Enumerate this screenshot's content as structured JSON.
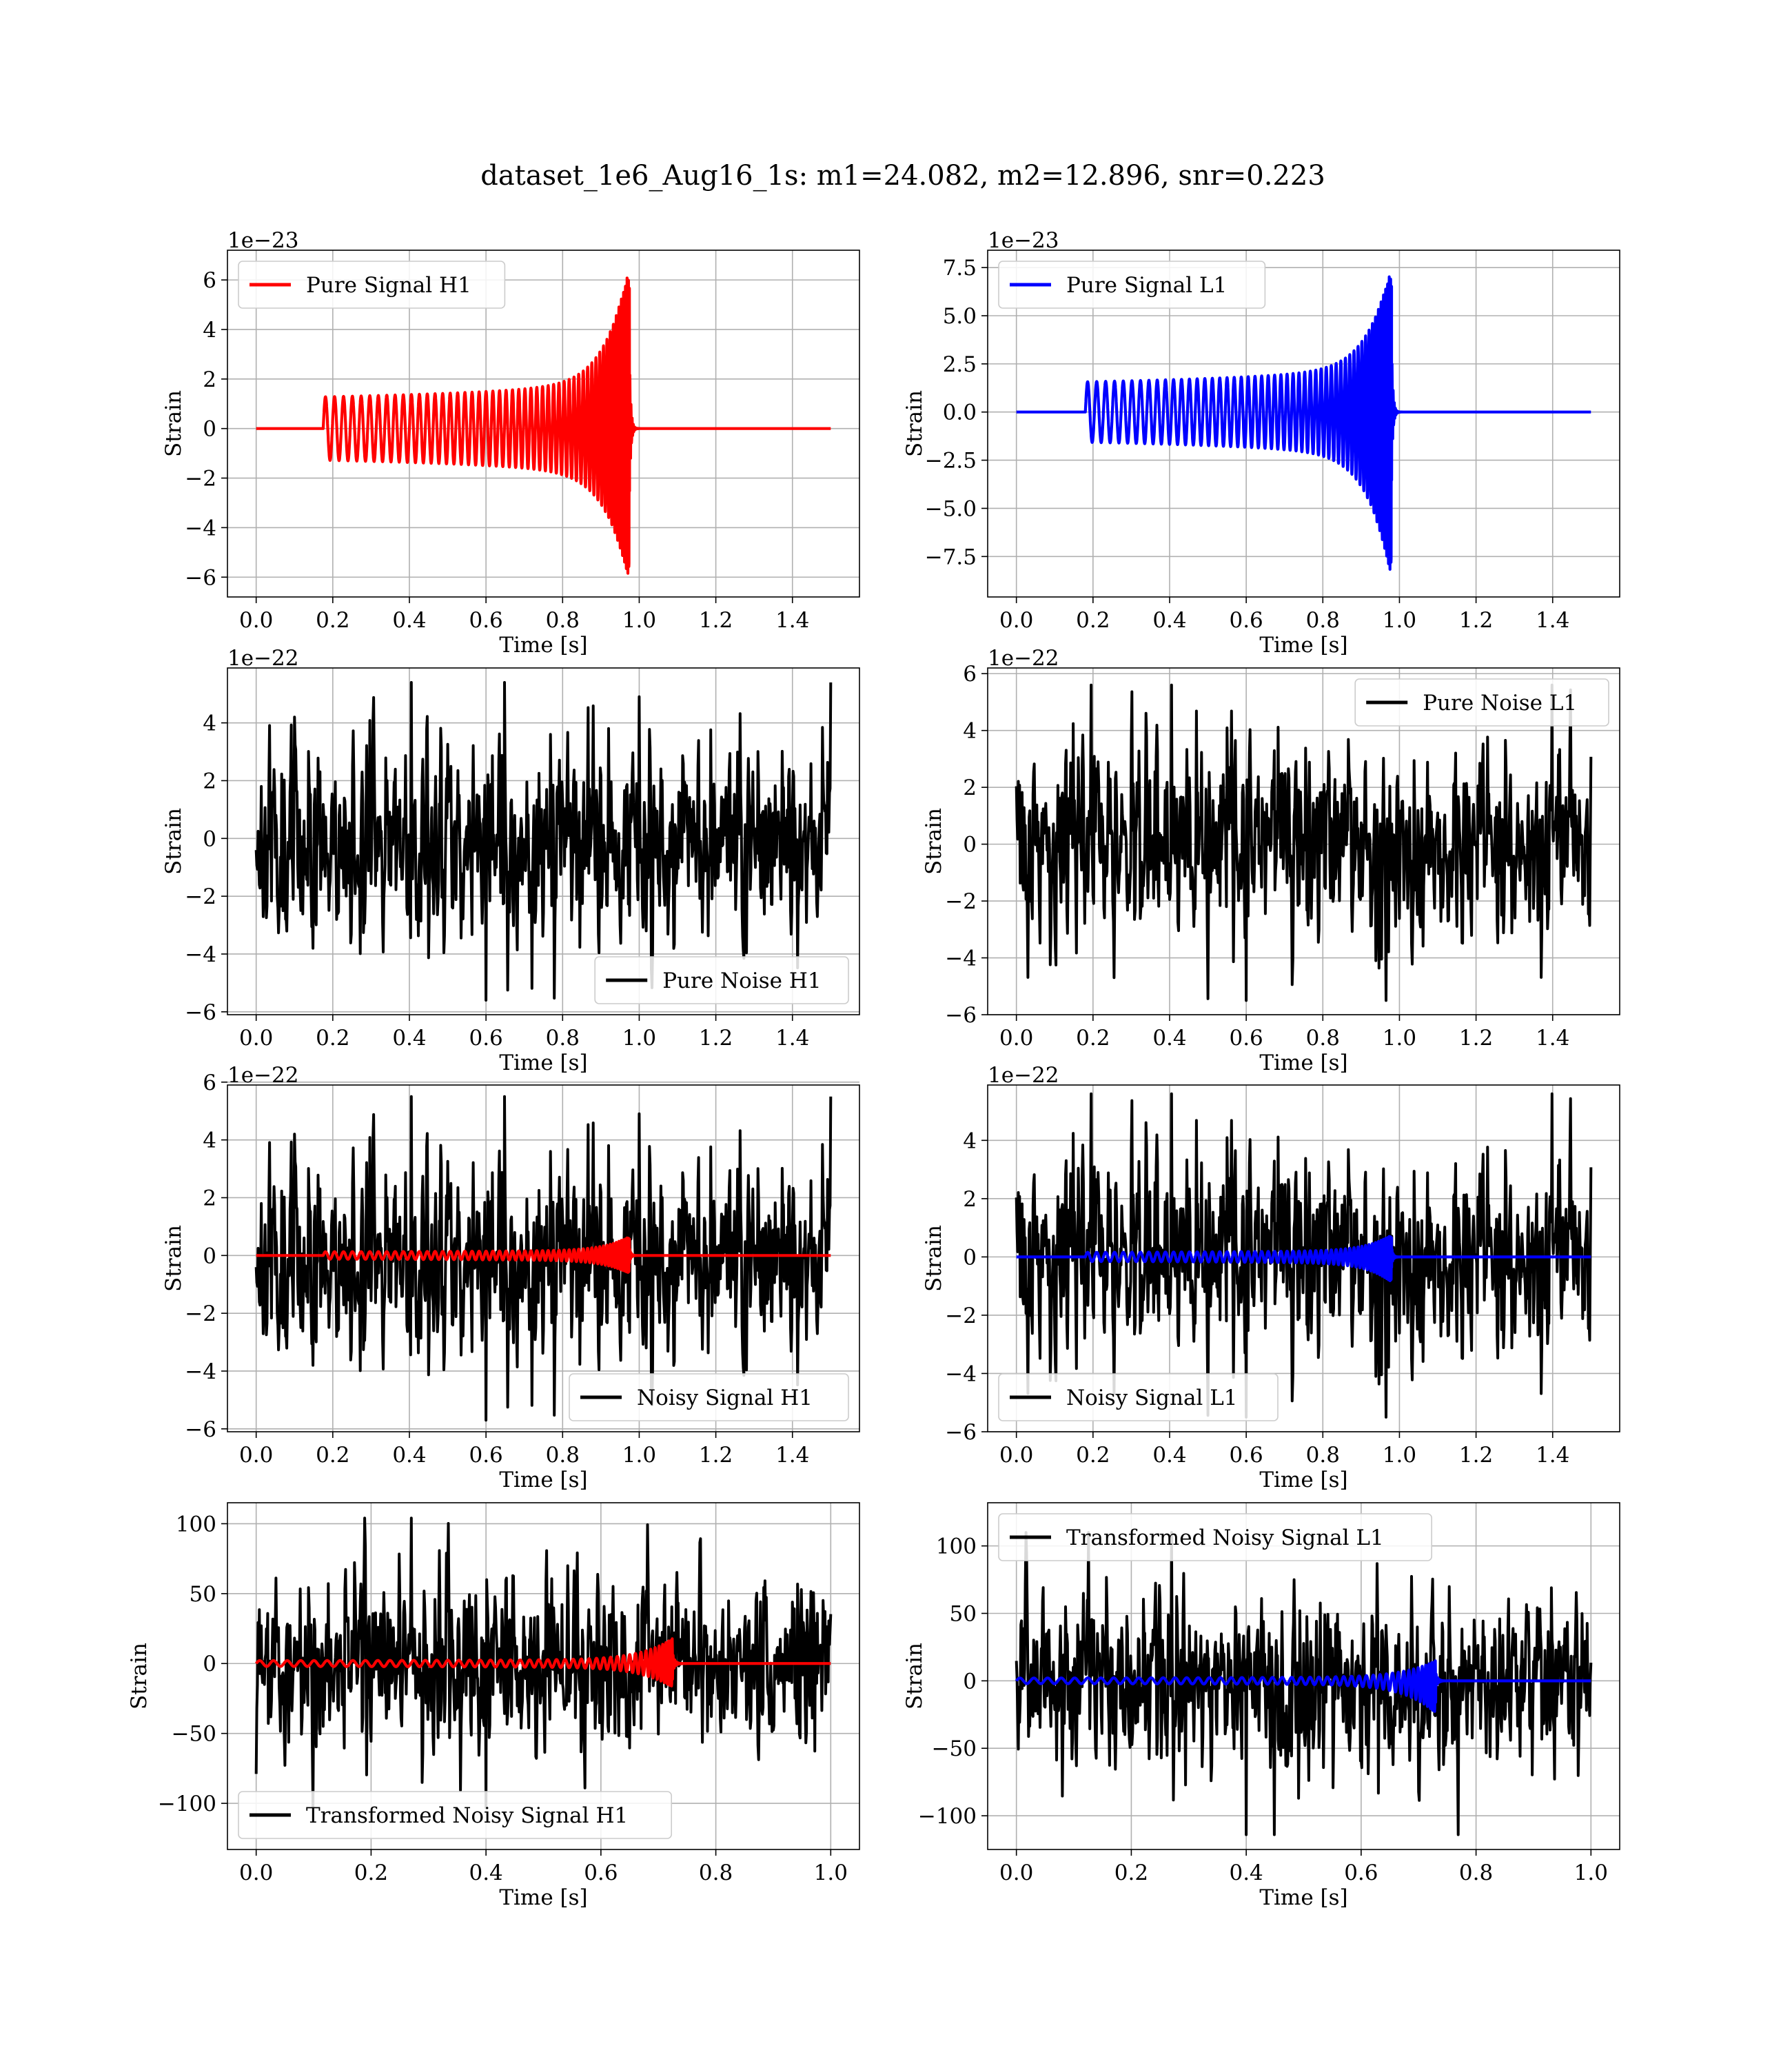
{
  "figure": {
    "title": "dataset_1e6_Aug16_1s: m1=24.082, m2=12.896, snr=0.223"
  },
  "chart_data": [
    {
      "type": "line",
      "panel": "top-left",
      "legend": {
        "placement": "upper left",
        "entries": [
          "Pure Signal H1"
        ]
      },
      "xlabel": "Time [s]",
      "ylabel": "Strain",
      "offset_label": "1e−23",
      "xlim": [
        -0.075,
        1.575
      ],
      "ylim": [
        -6.8,
        7.2
      ],
      "xticks": [
        0.0,
        0.2,
        0.4,
        0.6,
        0.8,
        1.0,
        1.2,
        1.4
      ],
      "xtick_labels": [
        "0.0",
        "0.2",
        "0.4",
        "0.6",
        "0.8",
        "1.0",
        "1.2",
        "1.4"
      ],
      "yticks": [
        -6,
        -4,
        -2,
        0,
        2,
        4,
        6
      ],
      "ytick_labels": [
        "−6",
        "−4",
        "−2",
        "0",
        "2",
        "4",
        "6"
      ],
      "grid": true,
      "series": [
        {
          "name": "Pure Signal H1",
          "color": "#ff0000",
          "kind": "chirp",
          "t_start": 0.175,
          "t_merge": 0.975,
          "t_end": 1.5,
          "amp_start": 1.55,
          "amp_peak_pos": 6.6,
          "amp_peak_neg": -6.2,
          "cycles": 54
        }
      ]
    },
    {
      "type": "line",
      "panel": "top-right",
      "legend": {
        "placement": "upper left",
        "entries": [
          "Pure Signal L1"
        ]
      },
      "xlabel": "Time [s]",
      "ylabel": "Strain",
      "offset_label": "1e−23",
      "xlim": [
        -0.075,
        1.575
      ],
      "ylim": [
        -9.6,
        8.4
      ],
      "xticks": [
        0.0,
        0.2,
        0.4,
        0.6,
        0.8,
        1.0,
        1.2,
        1.4
      ],
      "xtick_labels": [
        "0.0",
        "0.2",
        "0.4",
        "0.6",
        "0.8",
        "1.0",
        "1.2",
        "1.4"
      ],
      "yticks": [
        -7.5,
        -5.0,
        -2.5,
        0.0,
        2.5,
        5.0,
        7.5
      ],
      "ytick_labels": [
        "−7.5",
        "−5.0",
        "−2.5",
        "0.0",
        "2.5",
        "5.0",
        "7.5"
      ],
      "grid": true,
      "series": [
        {
          "name": "Pure Signal L1",
          "color": "#0000ff",
          "kind": "chirp",
          "t_start": 0.18,
          "t_merge": 0.98,
          "t_end": 1.5,
          "amp_start": 1.9,
          "amp_peak_pos": 7.6,
          "amp_peak_neg": -8.7,
          "cycles": 54
        }
      ]
    },
    {
      "type": "line",
      "panel": "row2-left",
      "legend": {
        "placement": "lower right",
        "entries": [
          "Pure Noise H1"
        ]
      },
      "xlabel": "Time [s]",
      "ylabel": "Strain",
      "offset_label": "1e−22",
      "xlim": [
        -0.075,
        1.575
      ],
      "ylim": [
        -6.1,
        5.9
      ],
      "xticks": [
        0.0,
        0.2,
        0.4,
        0.6,
        0.8,
        1.0,
        1.2,
        1.4
      ],
      "xtick_labels": [
        "0.0",
        "0.2",
        "0.4",
        "0.6",
        "0.8",
        "1.0",
        "1.2",
        "1.4"
      ],
      "yticks": [
        -6,
        -4,
        -2,
        0,
        2,
        4
      ],
      "ytick_labels": [
        "−6",
        "−4",
        "−2",
        "0",
        "2",
        "4"
      ],
      "grid": true,
      "series": [
        {
          "name": "Pure Noise H1",
          "color": "#000000",
          "kind": "noise",
          "t_start": 0.0,
          "t_end": 1.5,
          "seed": 11,
          "sigma": 1.45,
          "max": 5.4,
          "min": -5.6
        }
      ]
    },
    {
      "type": "line",
      "panel": "row2-right",
      "legend": {
        "placement": "upper right",
        "entries": [
          "Pure Noise L1"
        ]
      },
      "xlabel": "Time [s]",
      "ylabel": "Strain",
      "offset_label": "1e−22",
      "xlim": [
        -0.075,
        1.575
      ],
      "ylim": [
        -6.0,
        6.2
      ],
      "xticks": [
        0.0,
        0.2,
        0.4,
        0.6,
        0.8,
        1.0,
        1.2,
        1.4
      ],
      "xtick_labels": [
        "0.0",
        "0.2",
        "0.4",
        "0.6",
        "0.8",
        "1.0",
        "1.2",
        "1.4"
      ],
      "yticks": [
        -6,
        -4,
        -2,
        0,
        2,
        4,
        6
      ],
      "ytick_labels": [
        "−6",
        "−4",
        "−2",
        "0",
        "2",
        "4",
        "6"
      ],
      "grid": true,
      "series": [
        {
          "name": "Pure Noise L1",
          "color": "#000000",
          "kind": "noise",
          "t_start": 0.0,
          "t_end": 1.5,
          "seed": 29,
          "sigma": 1.45,
          "max": 5.6,
          "min": -5.5
        }
      ]
    },
    {
      "type": "line",
      "panel": "row3-left",
      "legend": {
        "placement": "lower right",
        "entries": [
          "Noisy Signal H1"
        ]
      },
      "xlabel": "Time [s]",
      "ylabel": "Strain",
      "offset_label": "1e−22",
      "xlim": [
        -0.075,
        1.575
      ],
      "ylim": [
        -6.1,
        5.9
      ],
      "xticks": [
        0.0,
        0.2,
        0.4,
        0.6,
        0.8,
        1.0,
        1.2,
        1.4
      ],
      "xtick_labels": [
        "0.0",
        "0.2",
        "0.4",
        "0.6",
        "0.8",
        "1.0",
        "1.2",
        "1.4"
      ],
      "yticks": [
        -6,
        -4,
        -2,
        0,
        2,
        4,
        6
      ],
      "ytick_labels": [
        "−6",
        "−4",
        "−2",
        "0",
        "2",
        "4",
        "6"
      ],
      "grid": true,
      "series": [
        {
          "name": "Noisy Signal H1",
          "color": "#000000",
          "kind": "noise",
          "t_start": 0.0,
          "t_end": 1.5,
          "seed": 11,
          "sigma": 1.45,
          "max": 5.5,
          "min": -5.7
        },
        {
          "color": "#ff0000",
          "kind": "chirp",
          "t_start": 0.175,
          "t_merge": 0.975,
          "t_end": 1.5,
          "amp_start": 0.155,
          "amp_peak_pos": 0.66,
          "amp_peak_neg": -0.62,
          "cycles": 54
        }
      ]
    },
    {
      "type": "line",
      "panel": "row3-right",
      "legend": {
        "placement": "lower left",
        "entries": [
          "Noisy Signal L1"
        ]
      },
      "xlabel": "Time [s]",
      "ylabel": "Strain",
      "offset_label": "1e−22",
      "xlim": [
        -0.075,
        1.575
      ],
      "ylim": [
        -6.0,
        5.9
      ],
      "xticks": [
        0.0,
        0.2,
        0.4,
        0.6,
        0.8,
        1.0,
        1.2,
        1.4
      ],
      "xtick_labels": [
        "0.0",
        "0.2",
        "0.4",
        "0.6",
        "0.8",
        "1.0",
        "1.2",
        "1.4"
      ],
      "yticks": [
        -6,
        -4,
        -2,
        0,
        2,
        4
      ],
      "ytick_labels": [
        "−6",
        "−4",
        "−2",
        "0",
        "2",
        "4"
      ],
      "grid": true,
      "series": [
        {
          "name": "Noisy Signal L1",
          "color": "#000000",
          "kind": "noise",
          "t_start": 0.0,
          "t_end": 1.5,
          "seed": 29,
          "sigma": 1.45,
          "max": 5.6,
          "min": -5.5
        },
        {
          "color": "#0000ff",
          "kind": "chirp",
          "t_start": 0.18,
          "t_merge": 0.98,
          "t_end": 1.5,
          "amp_start": 0.19,
          "amp_peak_pos": 0.76,
          "amp_peak_neg": -0.87,
          "cycles": 54
        }
      ]
    },
    {
      "type": "line",
      "panel": "row4-left",
      "legend": {
        "placement": "lower left",
        "entries": [
          "Transformed Noisy Signal H1"
        ]
      },
      "xlabel": "Time [s]",
      "ylabel": "Strain",
      "offset_label": "",
      "xlim": [
        -0.05,
        1.05
      ],
      "ylim": [
        -133,
        115
      ],
      "xticks": [
        0.0,
        0.2,
        0.4,
        0.6,
        0.8,
        1.0
      ],
      "xtick_labels": [
        "0.0",
        "0.2",
        "0.4",
        "0.6",
        "0.8",
        "1.0"
      ],
      "yticks": [
        -100,
        -50,
        0,
        50,
        100
      ],
      "ytick_labels": [
        "−100",
        "−50",
        "0",
        "50",
        "100"
      ],
      "grid": true,
      "series": [
        {
          "name": "Transformed Noisy Signal H1",
          "color": "#000000",
          "kind": "noise",
          "t_start": 0.0,
          "t_end": 1.0,
          "seed": 47,
          "sigma": 26,
          "max": 104,
          "min": -103
        },
        {
          "color": "#ff0000",
          "kind": "chirp",
          "t_start": 0.0,
          "t_merge": 0.725,
          "t_end": 1.0,
          "amp_start": 2.5,
          "amp_peak_pos": 18,
          "amp_peak_neg": -17,
          "cycles": 48
        }
      ]
    },
    {
      "type": "line",
      "panel": "row4-right",
      "legend": {
        "placement": "upper left",
        "entries": [
          "Transformed Noisy Signal L1"
        ]
      },
      "xlabel": "Time [s]",
      "ylabel": "Strain",
      "offset_label": "",
      "xlim": [
        -0.05,
        1.05
      ],
      "ylim": [
        -125,
        132
      ],
      "xticks": [
        0.0,
        0.2,
        0.4,
        0.6,
        0.8,
        1.0
      ],
      "xtick_labels": [
        "0.0",
        "0.2",
        "0.4",
        "0.6",
        "0.8",
        "1.0"
      ],
      "yticks": [
        -100,
        -50,
        0,
        50,
        100
      ],
      "ytick_labels": [
        "−100",
        "−50",
        "0",
        "50",
        "100"
      ],
      "grid": true,
      "series": [
        {
          "name": "Transformed Noisy Signal L1",
          "color": "#000000",
          "kind": "noise",
          "t_start": 0.0,
          "t_end": 1.0,
          "seed": 83,
          "sigma": 26,
          "max": 110,
          "min": -114
        },
        {
          "color": "#0000ff",
          "kind": "chirp",
          "t_start": 0.0,
          "t_merge": 0.73,
          "t_end": 1.0,
          "amp_start": 2.5,
          "amp_peak_pos": 15,
          "amp_peak_neg": -24,
          "cycles": 48
        }
      ]
    }
  ]
}
